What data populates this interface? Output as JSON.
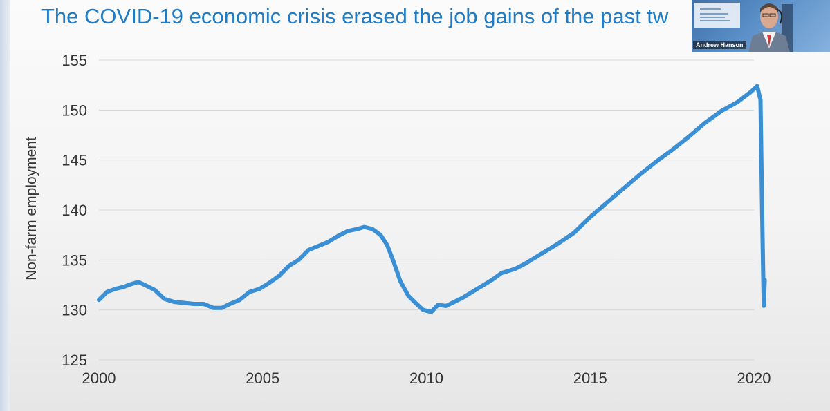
{
  "slide": {
    "title": "The COVID-19 economic crisis erased the job gains of the past tw"
  },
  "webcam": {
    "participant_name": "Andrew Hanson"
  },
  "chart_data": {
    "type": "line",
    "title": "",
    "xlabel": "",
    "ylabel": "Non-farm employment",
    "xlim": [
      2000,
      2020.5
    ],
    "ylim": [
      125,
      155
    ],
    "xticks": [
      2000,
      2005,
      2010,
      2015,
      2020
    ],
    "yticks": [
      125,
      130,
      135,
      140,
      145,
      150,
      155
    ],
    "grid": true,
    "color": "#3b8fd4",
    "series": [
      {
        "points": [
          [
            2000.0,
            131.0
          ],
          [
            2000.25,
            131.8
          ],
          [
            2000.5,
            132.1
          ],
          [
            2000.75,
            132.3
          ],
          [
            2001.0,
            132.6
          ],
          [
            2001.2,
            132.8
          ],
          [
            2001.4,
            132.5
          ],
          [
            2001.7,
            132.0
          ],
          [
            2002.0,
            131.1
          ],
          [
            2002.3,
            130.8
          ],
          [
            2002.6,
            130.7
          ],
          [
            2002.9,
            130.6
          ],
          [
            2003.2,
            130.6
          ],
          [
            2003.5,
            130.2
          ],
          [
            2003.75,
            130.2
          ],
          [
            2004.0,
            130.6
          ],
          [
            2004.3,
            131.0
          ],
          [
            2004.6,
            131.8
          ],
          [
            2004.9,
            132.1
          ],
          [
            2005.2,
            132.7
          ],
          [
            2005.5,
            133.4
          ],
          [
            2005.8,
            134.4
          ],
          [
            2006.1,
            135.0
          ],
          [
            2006.4,
            136.0
          ],
          [
            2006.7,
            136.4
          ],
          [
            2007.0,
            136.8
          ],
          [
            2007.3,
            137.4
          ],
          [
            2007.6,
            137.9
          ],
          [
            2007.9,
            138.1
          ],
          [
            2008.1,
            138.3
          ],
          [
            2008.35,
            138.1
          ],
          [
            2008.6,
            137.5
          ],
          [
            2008.8,
            136.5
          ],
          [
            2009.0,
            134.8
          ],
          [
            2009.2,
            132.9
          ],
          [
            2009.45,
            131.4
          ],
          [
            2009.7,
            130.6
          ],
          [
            2009.9,
            130.0
          ],
          [
            2010.15,
            129.8
          ],
          [
            2010.35,
            130.5
          ],
          [
            2010.6,
            130.4
          ],
          [
            2010.85,
            130.8
          ],
          [
            2011.1,
            131.2
          ],
          [
            2011.5,
            132.0
          ],
          [
            2012.0,
            133.0
          ],
          [
            2012.3,
            133.7
          ],
          [
            2012.7,
            134.1
          ],
          [
            2013.0,
            134.6
          ],
          [
            2013.5,
            135.6
          ],
          [
            2014.0,
            136.6
          ],
          [
            2014.5,
            137.7
          ],
          [
            2015.0,
            139.3
          ],
          [
            2015.5,
            140.7
          ],
          [
            2016.0,
            142.1
          ],
          [
            2016.5,
            143.5
          ],
          [
            2017.0,
            144.8
          ],
          [
            2017.5,
            146.0
          ],
          [
            2018.0,
            147.3
          ],
          [
            2018.5,
            148.7
          ],
          [
            2019.0,
            149.9
          ],
          [
            2019.5,
            150.8
          ],
          [
            2019.9,
            151.8
          ],
          [
            2020.1,
            152.4
          ],
          [
            2020.2,
            151.0
          ],
          [
            2020.25,
            140.0
          ],
          [
            2020.3,
            130.4
          ],
          [
            2020.33,
            133.0
          ]
        ]
      }
    ]
  }
}
